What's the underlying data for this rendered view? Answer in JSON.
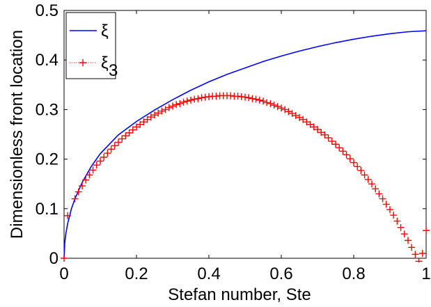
{
  "chart_data": {
    "type": "line",
    "title": "",
    "xlabel": "Stefan number, Ste",
    "ylabel": "Dimensionless front location",
    "xlim": [
      0,
      1
    ],
    "ylim": [
      0,
      0.5
    ],
    "xticks": [
      "0",
      "0.2",
      "0.4",
      "0.6",
      "0.8",
      "1"
    ],
    "yticks": [
      "0",
      "0.1",
      "0.2",
      "0.3",
      "0.4",
      "0.5"
    ],
    "grid": false,
    "legend_position": "top-left",
    "series": [
      {
        "name": "ξ",
        "style": "solid line",
        "color": "#0000ff",
        "x": [
          0,
          0.002,
          0.005,
          0.01,
          0.02,
          0.03,
          0.05,
          0.075,
          0.1,
          0.15,
          0.2,
          0.25,
          0.3,
          0.35,
          0.4,
          0.45,
          0.5,
          0.55,
          0.6,
          0.65,
          0.7,
          0.75,
          0.8,
          0.85,
          0.9,
          0.95,
          1.0
        ],
        "y": [
          0,
          0.032,
          0.05,
          0.07,
          0.099,
          0.12,
          0.153,
          0.185,
          0.211,
          0.249,
          0.276,
          0.299,
          0.32,
          0.339,
          0.356,
          0.371,
          0.384,
          0.397,
          0.408,
          0.418,
          0.427,
          0.435,
          0.442,
          0.448,
          0.453,
          0.457,
          0.459
        ]
      },
      {
        "name": "ξ",
        "name_subscript": "3",
        "style": "plus markers",
        "color": "#ff0000",
        "x": [
          0,
          0.01,
          0.03,
          0.04,
          0.05,
          0.06,
          0.07,
          0.08,
          0.09,
          0.1,
          0.11,
          0.12,
          0.13,
          0.14,
          0.15,
          0.16,
          0.17,
          0.18,
          0.19,
          0.2,
          0.21,
          0.22,
          0.23,
          0.24,
          0.25,
          0.26,
          0.27,
          0.28,
          0.29,
          0.3,
          0.31,
          0.32,
          0.33,
          0.34,
          0.35,
          0.36,
          0.37,
          0.38,
          0.39,
          0.4,
          0.41,
          0.42,
          0.43,
          0.44,
          0.45,
          0.46,
          0.47,
          0.48,
          0.49,
          0.5,
          0.51,
          0.52,
          0.53,
          0.54,
          0.55,
          0.56,
          0.57,
          0.58,
          0.59,
          0.6,
          0.61,
          0.62,
          0.63,
          0.64,
          0.65,
          0.66,
          0.67,
          0.68,
          0.69,
          0.7,
          0.71,
          0.72,
          0.73,
          0.74,
          0.75,
          0.76,
          0.77,
          0.78,
          0.79,
          0.8,
          0.81,
          0.82,
          0.83,
          0.84,
          0.85,
          0.86,
          0.87,
          0.88,
          0.89,
          0.9,
          0.91,
          0.92,
          0.93,
          0.94,
          0.95,
          0.96,
          0.97,
          0.98,
          0.99,
          1.0
        ],
        "y": [
          0,
          0.086,
          0.12,
          0.134,
          0.146,
          0.158,
          0.168,
          0.178,
          0.188,
          0.196,
          0.204,
          0.212,
          0.22,
          0.227,
          0.234,
          0.241,
          0.247,
          0.253,
          0.259,
          0.265,
          0.27,
          0.275,
          0.28,
          0.285,
          0.289,
          0.293,
          0.297,
          0.3,
          0.304,
          0.307,
          0.31,
          0.312,
          0.315,
          0.317,
          0.319,
          0.321,
          0.322,
          0.324,
          0.325,
          0.326,
          0.327,
          0.327,
          0.328,
          0.328,
          0.328,
          0.328,
          0.327,
          0.327,
          0.326,
          0.325,
          0.324,
          0.322,
          0.321,
          0.319,
          0.317,
          0.314,
          0.312,
          0.309,
          0.306,
          0.303,
          0.3,
          0.296,
          0.292,
          0.288,
          0.284,
          0.28,
          0.275,
          0.27,
          0.265,
          0.26,
          0.254,
          0.249,
          0.243,
          0.236,
          0.23,
          0.223,
          0.216,
          0.209,
          0.201,
          0.193,
          0.185,
          0.177,
          0.168,
          0.159,
          0.15,
          0.14,
          0.13,
          0.12,
          0.109,
          0.098,
          0.087,
          0.075,
          0.062,
          0.049,
          0.036,
          0.022,
          0.008,
          -0.006,
          0.01,
          0.056
        ]
      }
    ]
  }
}
